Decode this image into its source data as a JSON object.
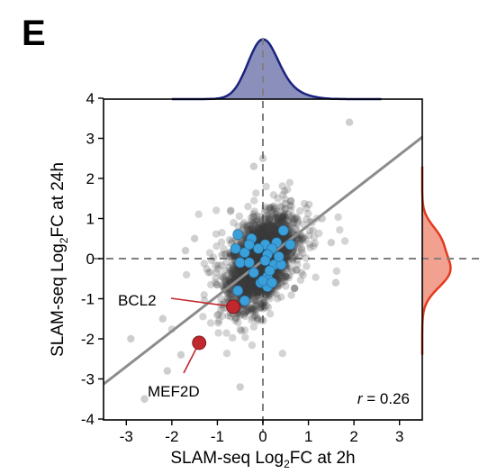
{
  "panel_label": "E",
  "chart_data": {
    "type": "scatter",
    "xlabel": {
      "prefix": "SLAM-seq Log",
      "sub": "2",
      "suffix": "FC at 2h"
    },
    "ylabel": {
      "prefix": "SLAM-seq Log",
      "sub": "2",
      "suffix": "FC at 24h"
    },
    "xlim": [
      -3.5,
      3.5
    ],
    "ylim": [
      -4,
      4
    ],
    "xticks": [
      -3,
      -2,
      -1,
      0,
      1,
      2,
      3
    ],
    "yticks": [
      -4,
      -3,
      -2,
      -1,
      0,
      1,
      2,
      3,
      4
    ],
    "x_tick_labels": [
      "-3",
      "-2",
      "-1",
      "0",
      "1",
      "2",
      "3"
    ],
    "y_tick_labels": [
      "-4",
      "-3",
      "-2",
      "-1",
      "0",
      "1",
      "2",
      "3",
      "4"
    ],
    "reference_lines": {
      "x": 0,
      "y": 0,
      "style": "dashed",
      "color": "#808080"
    },
    "fit_line": {
      "slope": 0.88,
      "intercept": -0.05,
      "color": "#8c8c8c"
    },
    "correlation": {
      "symbol": "r",
      "text": " = 0.26",
      "value": 0.26
    },
    "background_points": {
      "color": "#3c3c3c",
      "description": "Thousands of genes forming a dense gray cloud centered near (0, 0)",
      "outliers": [
        [
          1.9,
          3.4
        ],
        [
          -0.2,
          2.3
        ],
        [
          -2.1,
          -2.8
        ],
        [
          -2.6,
          -3.5
        ],
        [
          -0.5,
          -3.2
        ],
        [
          -2.2,
          -1.5
        ],
        [
          -1.5,
          0.5
        ],
        [
          1.5,
          0.4
        ],
        [
          -2.9,
          -2.0
        ],
        [
          1.6,
          -0.6
        ],
        [
          0.0,
          2.5
        ],
        [
          -1.8,
          -2.4
        ],
        [
          1.3,
          1.0
        ],
        [
          -1.7,
          0.2
        ]
      ]
    },
    "highlight_points": {
      "color": "#3b9fd9",
      "values": [
        [
          -0.55,
          0.6
        ],
        [
          -0.25,
          0.5
        ],
        [
          0.45,
          0.7
        ],
        [
          -0.6,
          0.25
        ],
        [
          -0.4,
          0.15
        ],
        [
          0.05,
          0.35
        ],
        [
          0.3,
          0.4
        ],
        [
          0.6,
          0.35
        ],
        [
          0.2,
          0.25
        ],
        [
          -0.1,
          0.25
        ],
        [
          -0.5,
          -0.1
        ],
        [
          -0.3,
          -0.1
        ],
        [
          0.1,
          0.1
        ],
        [
          0.05,
          -0.05
        ],
        [
          0.25,
          -0.15
        ],
        [
          0.4,
          -0.15
        ],
        [
          -0.2,
          -0.35
        ],
        [
          0.1,
          -0.45
        ],
        [
          -0.05,
          -0.6
        ],
        [
          0.1,
          -0.7
        ],
        [
          0.0,
          -0.55
        ],
        [
          0.2,
          -0.6
        ],
        [
          -0.55,
          -0.8
        ],
        [
          -0.4,
          -1.05
        ],
        [
          0.35,
          0.05
        ],
        [
          0.15,
          -0.3
        ],
        [
          -0.3,
          0.35
        ]
      ]
    },
    "labeled_points": [
      {
        "label": "BCL2",
        "x": -0.65,
        "y": -1.2,
        "color": "#c0282d"
      },
      {
        "label": "MEF2D",
        "x": -1.4,
        "y": -2.1,
        "color": "#c0282d"
      }
    ],
    "marginal_x_density": {
      "fill": "#8a90bb",
      "stroke": "#1a237e"
    },
    "marginal_y_density": {
      "fill": "#f2a08f",
      "stroke": "#e33b1e"
    }
  }
}
